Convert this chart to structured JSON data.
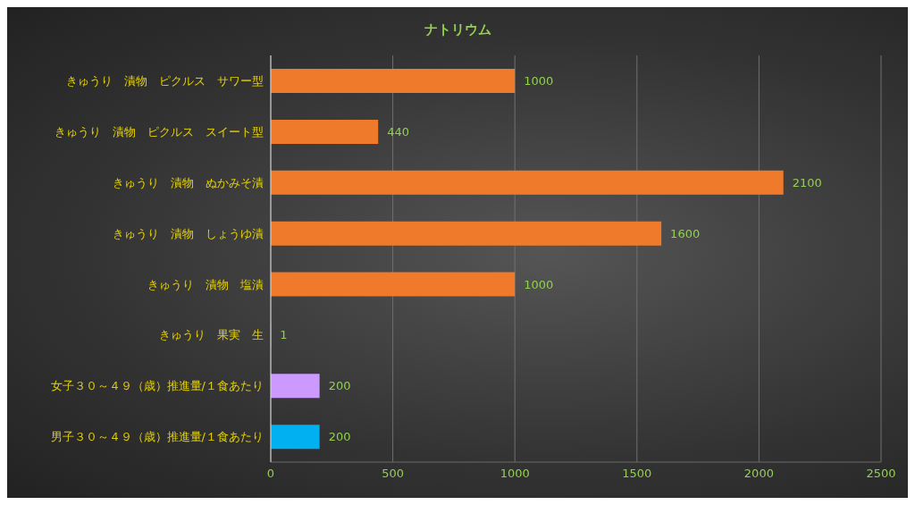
{
  "chart_data": {
    "type": "bar",
    "orientation": "horizontal",
    "title": "ナトリウム",
    "categories": [
      "きゅうり　漬物　ピクルス　サワー型",
      "きゅうり　漬物　ピクルス　スイート型",
      "きゅうり　漬物　ぬかみそ漬",
      "きゅうり　漬物　しょうゆ漬",
      "きゅうり　漬物　塩漬",
      "きゅうり　果実　生",
      "女子３０～４９（歳）推進量/１食あたり",
      "男子３０～４９（歳）推進量/１食あたり"
    ],
    "values": [
      1000,
      440,
      2100,
      1600,
      1000,
      1,
      200,
      200
    ],
    "colors": [
      "#f07a2c",
      "#f07a2c",
      "#f07a2c",
      "#f07a2c",
      "#f07a2c",
      "#f07a2c",
      "#cc99ff",
      "#00b0f0"
    ],
    "xlim": [
      0,
      2500
    ],
    "xticks": [
      0,
      500,
      1000,
      1500,
      2000,
      2500
    ],
    "grid": "x",
    "data_labels": true
  }
}
